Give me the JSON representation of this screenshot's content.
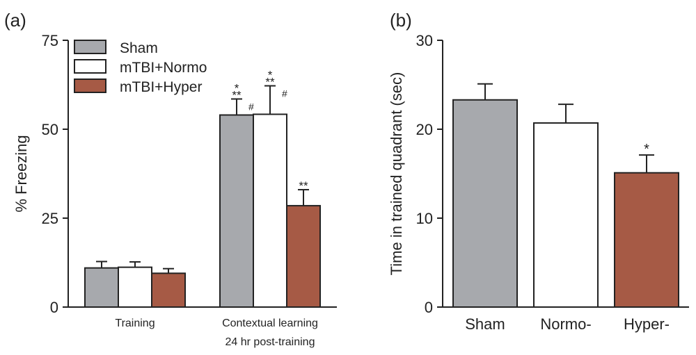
{
  "chart_data": [
    {
      "type": "bar",
      "panel_label": "(a)",
      "ylabel": "% Freezing",
      "xlabel": "",
      "ylim": [
        0,
        75
      ],
      "yticks": [
        "0",
        "25",
        "50",
        "75"
      ],
      "categories": [
        "Training",
        "Contextual learning\n24 hr post-training"
      ],
      "category_lines": [
        [
          "Training"
        ],
        [
          "Contextual learning",
          "24 hr post-training"
        ]
      ],
      "series": [
        {
          "name": "Sham",
          "color": "#a7a9ad",
          "values": [
            11.0,
            54.0
          ],
          "errors": [
            1.8,
            4.5
          ]
        },
        {
          "name": "mTBI+Normo",
          "color": "#ffffff",
          "values": [
            11.2,
            54.2
          ],
          "errors": [
            1.5,
            8.0
          ]
        },
        {
          "name": "mTBI+Hyper",
          "color": "#a65a45",
          "values": [
            9.5,
            28.5
          ],
          "errors": [
            1.3,
            4.5
          ]
        }
      ],
      "annotations": [
        {
          "category": 1,
          "series": 0,
          "stars": [
            "*",
            "**"
          ],
          "hash": "#"
        },
        {
          "category": 1,
          "series": 1,
          "stars": [
            "*",
            "**"
          ],
          "hash": "#"
        },
        {
          "category": 1,
          "series": 2,
          "stars": [
            "**"
          ],
          "hash": ""
        }
      ],
      "legend_position": "top-left"
    },
    {
      "type": "bar",
      "panel_label": "(b)",
      "ylabel": "Time in trained quadrant (sec)",
      "xlabel": "",
      "ylim": [
        0,
        30
      ],
      "yticks": [
        "0",
        "10",
        "20",
        "30"
      ],
      "categories": [
        "Sham",
        "Normo-",
        "Hyper-"
      ],
      "values": [
        23.3,
        20.7,
        15.1
      ],
      "errors": [
        1.8,
        2.1,
        2.0
      ],
      "colors": [
        "#a7a9ad",
        "#ffffff",
        "#a65a45"
      ],
      "annotations": [
        {
          "category": 2,
          "stars": [
            "*"
          ]
        }
      ]
    }
  ]
}
